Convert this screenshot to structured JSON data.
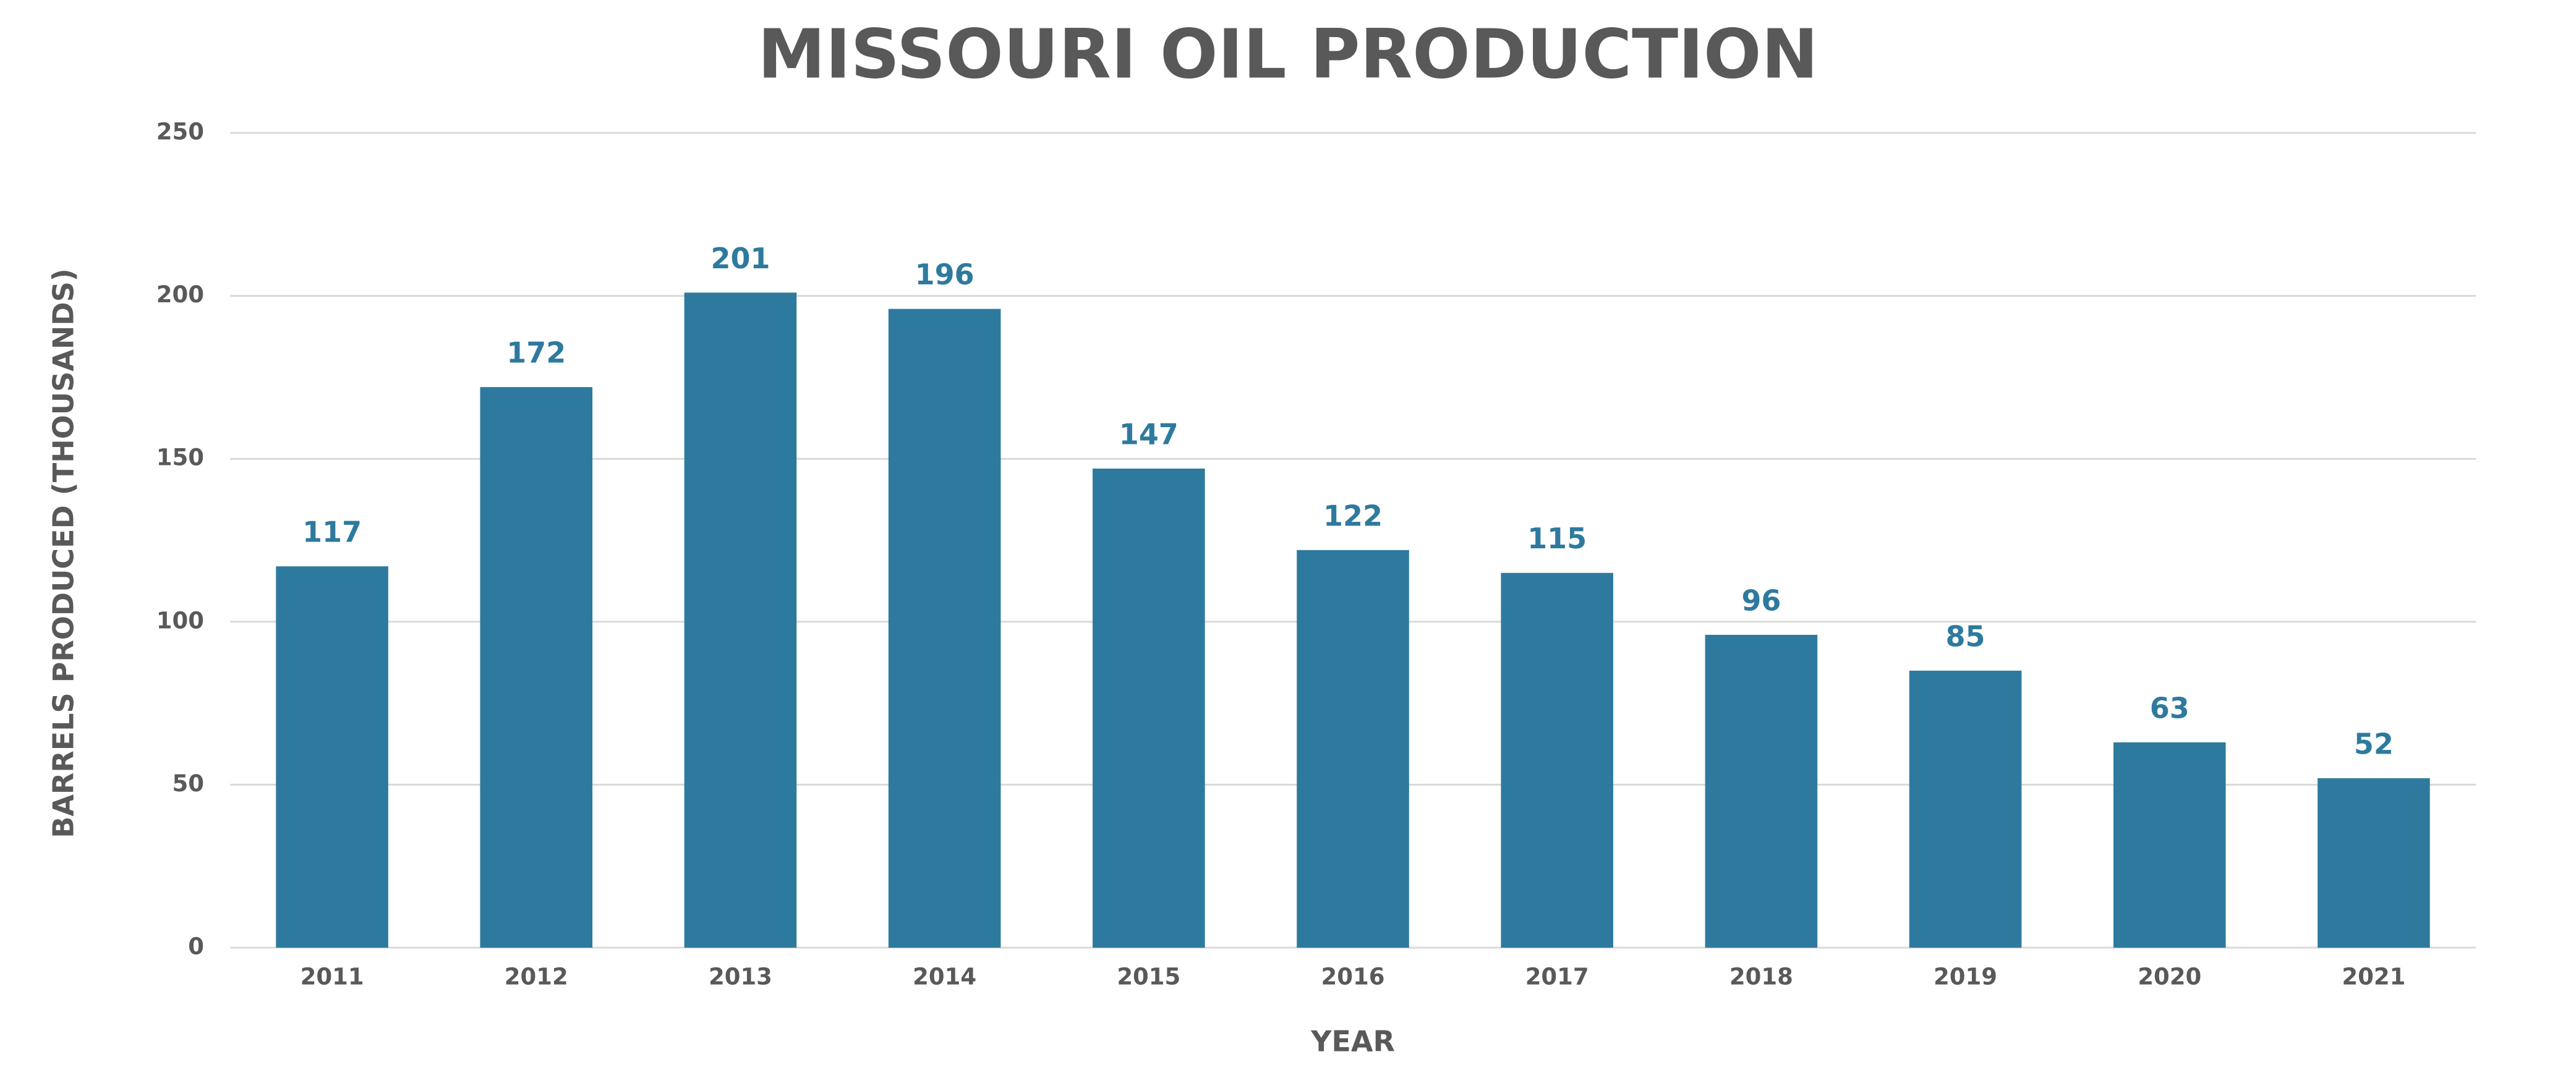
{
  "chart_data": {
    "type": "bar",
    "title": "MISSOURI OIL PRODUCTION",
    "x_label": "YEAR",
    "y_label": "BARRELS PRODUCED (THOUSANDS)",
    "categories": [
      "2011",
      "2012",
      "2013",
      "2014",
      "2015",
      "2016",
      "2017",
      "2018",
      "2019",
      "2020",
      "2021"
    ],
    "values": [
      117,
      172,
      201,
      196,
      147,
      122,
      115,
      96,
      85,
      63,
      52
    ],
    "color": "#2e7a9e",
    "ylim": [
      0,
      250
    ],
    "yticks": [
      0,
      50,
      100,
      150,
      200,
      250
    ],
    "grid": true,
    "data_labels": true
  }
}
